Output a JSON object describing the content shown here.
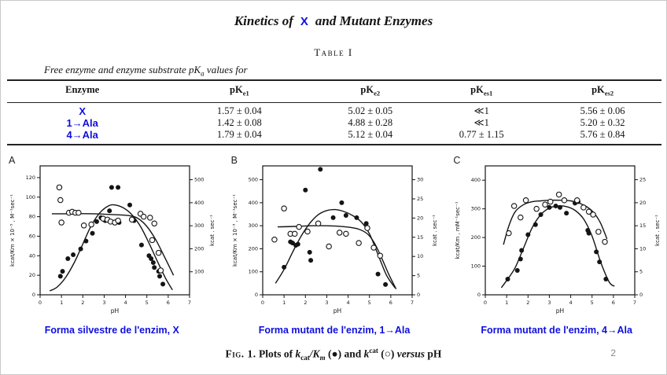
{
  "page_number": "2",
  "title": {
    "part1": "Kinetics of",
    "enzyme": "X",
    "part2": "and Mutant Enzymes"
  },
  "table": {
    "label": "Table I",
    "subtitle_prefix": "Free enzyme and enzyme substrate pK",
    "subtitle_sub": "a",
    "subtitle_suffix": " values for",
    "headers": [
      {
        "base": "Enzyme",
        "sub": ""
      },
      {
        "base": "pK",
        "sub": "e1"
      },
      {
        "base": "pK",
        "sub": "e2"
      },
      {
        "base": "pK",
        "sub": "es1"
      },
      {
        "base": "pK",
        "sub": "es2"
      }
    ],
    "rows": [
      {
        "enzyme": "X",
        "pke1": "1.57 ± 0.04",
        "pke2": "5.02 ± 0.05",
        "pkes1": "≪1",
        "pkes2": "5.56 ± 0.06"
      },
      {
        "enzyme": "1→Ala",
        "pke1": "1.42 ± 0.08",
        "pke2": "4.88 ± 0.28",
        "pkes1": "≪1",
        "pkes2": "5.20 ± 0.32"
      },
      {
        "enzyme": "4→Ala",
        "pke1": "1.79 ± 0.04",
        "pke2": "5.12 ± 0.04",
        "pkes1": "0.77 ± 1.15",
        "pkes2": "5.76 ± 0.84"
      }
    ]
  },
  "captions": {
    "a": "Forma silvestre de l'enzim, X",
    "b": "Forma mutant de l'enzim, 1→Ala",
    "c": "Forma mutant de l'enzim, 4→Ala"
  },
  "figure": {
    "prefix": "Fig. 1.",
    "seg1": " Plots of ",
    "k1": "k",
    "k1sub": "cat",
    "k2": "/K",
    "k2sub": "m",
    "seg2": " (●) and ",
    "k3": "k",
    "k3sup": "cat",
    "seg3": " (○) ",
    "versus": "versus",
    "seg4": " pH"
  },
  "colors": {
    "accent_blue": "#0f0fe0",
    "ink": "#141414",
    "page_num_gray": "#8a8a8a"
  },
  "chart_data": [
    {
      "panel": "A",
      "type": "scatter",
      "xlabel": "pH",
      "xlim": [
        0,
        7
      ],
      "x_ticks": [
        0,
        1,
        2,
        3,
        4,
        5,
        6,
        7
      ],
      "left_axis": {
        "label": "kcat/Km × 10⁻⁵ , M⁻¹sec⁻¹",
        "ticks": [
          0,
          20,
          40,
          60,
          80,
          100,
          120
        ],
        "lim": [
          0,
          132
        ]
      },
      "right_axis": {
        "label": "kcat . sec⁻¹",
        "ticks": [
          100,
          200,
          300,
          400,
          500
        ],
        "lim": [
          0,
          560
        ]
      },
      "legend": {
        "filled": "kcat/Km",
        "open": "kcat"
      },
      "series": [
        {
          "name": "kcat/Km",
          "marker": "filled",
          "points": [
            [
              0.95,
              19
            ],
            [
              1.05,
              24
            ],
            [
              1.3,
              37
            ],
            [
              1.55,
              41
            ],
            [
              1.9,
              47
            ],
            [
              2.15,
              55
            ],
            [
              2.45,
              63
            ],
            [
              2.65,
              75
            ],
            [
              2.85,
              79
            ],
            [
              3.05,
              76
            ],
            [
              3.25,
              86
            ],
            [
              3.35,
              110
            ],
            [
              3.65,
              110
            ],
            [
              3.55,
              75
            ],
            [
              3.7,
              74
            ],
            [
              4.2,
              92
            ],
            [
              4.4,
              76
            ],
            [
              4.75,
              51
            ],
            [
              5.1,
              40
            ],
            [
              5.2,
              37
            ],
            [
              5.3,
              33
            ],
            [
              5.35,
              28
            ],
            [
              5.55,
              24
            ],
            [
              5.6,
              19
            ],
            [
              5.75,
              11
            ]
          ]
        },
        {
          "name": "kcat",
          "marker": "open",
          "points": [
            [
              0.9,
              110
            ],
            [
              0.95,
              97
            ],
            [
              1.0,
              74
            ],
            [
              1.35,
              84
            ],
            [
              1.5,
              85
            ],
            [
              1.65,
              84
            ],
            [
              1.8,
              84
            ],
            [
              2.05,
              71
            ],
            [
              2.4,
              72
            ],
            [
              2.95,
              78
            ],
            [
              3.15,
              77
            ],
            [
              3.3,
              75
            ],
            [
              3.5,
              74
            ],
            [
              3.65,
              76
            ],
            [
              4.3,
              77
            ],
            [
              4.7,
              83
            ],
            [
              4.85,
              80
            ],
            [
              5.15,
              79
            ],
            [
              5.35,
              73
            ],
            [
              5.25,
              56
            ],
            [
              5.55,
              43
            ],
            [
              5.65,
              25
            ]
          ]
        }
      ],
      "curves": [
        {
          "name": "bell-fit",
          "points": [
            [
              0.45,
              4
            ],
            [
              0.8,
              8
            ],
            [
              1.2,
              18
            ],
            [
              1.6,
              33
            ],
            [
              2.0,
              52
            ],
            [
              2.4,
              71
            ],
            [
              2.8,
              84
            ],
            [
              3.2,
              91
            ],
            [
              3.5,
              92
            ],
            [
              3.9,
              89
            ],
            [
              4.3,
              82
            ],
            [
              4.7,
              70
            ],
            [
              5.1,
              53
            ],
            [
              5.5,
              34
            ],
            [
              5.9,
              16
            ],
            [
              6.2,
              5
            ]
          ]
        },
        {
          "name": "plateau-fit",
          "points": [
            [
              0.55,
              83
            ],
            [
              1.5,
              83
            ],
            [
              2.5,
              83
            ],
            [
              3.5,
              82
            ],
            [
              4.2,
              81
            ],
            [
              4.6,
              78
            ],
            [
              5.0,
              70
            ],
            [
              5.4,
              57
            ],
            [
              5.8,
              40
            ],
            [
              6.25,
              20
            ]
          ]
        }
      ]
    },
    {
      "panel": "B",
      "type": "scatter",
      "xlabel": "pH",
      "xlim": [
        0,
        7
      ],
      "x_ticks": [
        0,
        1,
        2,
        3,
        4,
        5,
        6,
        7
      ],
      "left_axis": {
        "label": "kcat/Km × 10⁻³ , M⁻¹sec⁻¹",
        "ticks": [
          0,
          100,
          200,
          300,
          400,
          500
        ],
        "lim": [
          0,
          560
        ]
      },
      "right_axis": {
        "label": "kcat . sec⁻¹",
        "ticks": [
          0,
          5,
          10,
          15,
          20,
          25,
          30
        ],
        "lim": [
          0,
          33.6
        ]
      },
      "legend": {
        "filled": "kcat/Km",
        "open": "kcat"
      },
      "series": [
        {
          "name": "kcat/Km",
          "marker": "filled",
          "points": [
            [
              1.0,
              120
            ],
            [
              1.3,
              230
            ],
            [
              1.4,
              225
            ],
            [
              1.55,
              215
            ],
            [
              1.65,
              220
            ],
            [
              2.0,
              455
            ],
            [
              2.2,
              185
            ],
            [
              2.25,
              150
            ],
            [
              2.7,
              545
            ],
            [
              3.3,
              335
            ],
            [
              3.7,
              400
            ],
            [
              3.9,
              345
            ],
            [
              4.4,
              335
            ],
            [
              4.85,
              310
            ],
            [
              5.4,
              90
            ],
            [
              5.75,
              45
            ]
          ]
        },
        {
          "name": "kcat",
          "marker": "open",
          "points": [
            [
              0.55,
              240
            ],
            [
              1.0,
              375
            ],
            [
              1.3,
              265
            ],
            [
              1.5,
              265
            ],
            [
              1.7,
              295
            ],
            [
              2.1,
              275
            ],
            [
              2.6,
              310
            ],
            [
              3.1,
              210
            ],
            [
              3.6,
              270
            ],
            [
              3.9,
              265
            ],
            [
              4.5,
              225
            ],
            [
              4.9,
              290
            ],
            [
              5.2,
              205
            ],
            [
              5.5,
              170
            ]
          ]
        }
      ],
      "curves": [
        {
          "name": "bell-fit",
          "points": [
            [
              0.6,
              50
            ],
            [
              1.0,
              110
            ],
            [
              1.4,
              185
            ],
            [
              1.8,
              255
            ],
            [
              2.2,
              310
            ],
            [
              2.6,
              348
            ],
            [
              3.0,
              366
            ],
            [
              3.4,
              370
            ],
            [
              3.8,
              362
            ],
            [
              4.2,
              345
            ],
            [
              4.6,
              318
            ],
            [
              5.0,
              265
            ],
            [
              5.4,
              175
            ],
            [
              5.8,
              85
            ],
            [
              6.2,
              30
            ]
          ]
        },
        {
          "name": "plateau-fit",
          "points": [
            [
              0.7,
              295
            ],
            [
              1.5,
              297
            ],
            [
              2.5,
              300
            ],
            [
              3.3,
              299
            ],
            [
              4.0,
              294
            ],
            [
              4.5,
              285
            ],
            [
              4.9,
              265
            ],
            [
              5.2,
              230
            ],
            [
              5.5,
              175
            ],
            [
              5.9,
              90
            ],
            [
              6.25,
              25
            ]
          ]
        }
      ]
    },
    {
      "panel": "C",
      "type": "scatter",
      "xlabel": "pH",
      "xlim": [
        0,
        7
      ],
      "x_ticks": [
        0,
        1,
        2,
        3,
        4,
        5,
        6,
        7
      ],
      "left_axis": {
        "label": "kcat/Km , mM⁻¹sec⁻¹",
        "ticks": [
          0,
          100,
          200,
          300,
          400
        ],
        "lim": [
          0,
          450
        ]
      },
      "right_axis": {
        "label": "kcat . sec⁻¹",
        "ticks": [
          0,
          5,
          10,
          15,
          20,
          25
        ],
        "lim": [
          0,
          28
        ]
      },
      "legend": {
        "filled": "kcat/Km",
        "open": "kcat"
      },
      "series": [
        {
          "name": "kcat/Km",
          "marker": "filled",
          "points": [
            [
              1.05,
              55
            ],
            [
              1.5,
              85
            ],
            [
              1.65,
              125
            ],
            [
              1.7,
              155
            ],
            [
              2.0,
              210
            ],
            [
              2.35,
              245
            ],
            [
              2.6,
              280
            ],
            [
              3.0,
              305
            ],
            [
              3.3,
              310
            ],
            [
              3.5,
              305
            ],
            [
              3.8,
              285
            ],
            [
              4.2,
              320
            ],
            [
              4.35,
              325
            ],
            [
              4.8,
              225
            ],
            [
              4.85,
              215
            ],
            [
              5.2,
              150
            ],
            [
              5.35,
              115
            ],
            [
              5.65,
              55
            ]
          ]
        },
        {
          "name": "kcat",
          "marker": "open",
          "points": [
            [
              1.1,
              215
            ],
            [
              1.35,
              310
            ],
            [
              1.65,
              270
            ],
            [
              1.9,
              330
            ],
            [
              2.4,
              300
            ],
            [
              2.8,
              315
            ],
            [
              3.05,
              325
            ],
            [
              3.45,
              350
            ],
            [
              3.7,
              330
            ],
            [
              4.3,
              330
            ],
            [
              4.6,
              305
            ],
            [
              4.85,
              290
            ],
            [
              5.05,
              280
            ],
            [
              5.3,
              220
            ],
            [
              5.6,
              185
            ]
          ]
        }
      ],
      "curves": [
        {
          "name": "bell-fit",
          "points": [
            [
              0.75,
              25
            ],
            [
              1.0,
              50
            ],
            [
              1.4,
              95
            ],
            [
              1.8,
              165
            ],
            [
              2.2,
              235
            ],
            [
              2.6,
              280
            ],
            [
              3.0,
              303
            ],
            [
              3.4,
              310
            ],
            [
              3.8,
              308
            ],
            [
              4.2,
              295
            ],
            [
              4.6,
              265
            ],
            [
              5.0,
              205
            ],
            [
              5.4,
              115
            ],
            [
              5.8,
              45
            ],
            [
              6.05,
              30
            ]
          ]
        },
        {
          "name": "broad-fit",
          "points": [
            [
              0.85,
              175
            ],
            [
              1.1,
              240
            ],
            [
              1.4,
              290
            ],
            [
              1.8,
              315
            ],
            [
              2.2,
              325
            ],
            [
              2.6,
              328
            ],
            [
              3.0,
              330
            ],
            [
              3.5,
              330
            ],
            [
              4.0,
              328
            ],
            [
              4.4,
              320
            ],
            [
              4.8,
              305
            ],
            [
              5.1,
              285
            ],
            [
              5.4,
              250
            ],
            [
              5.7,
              195
            ]
          ]
        }
      ]
    }
  ]
}
